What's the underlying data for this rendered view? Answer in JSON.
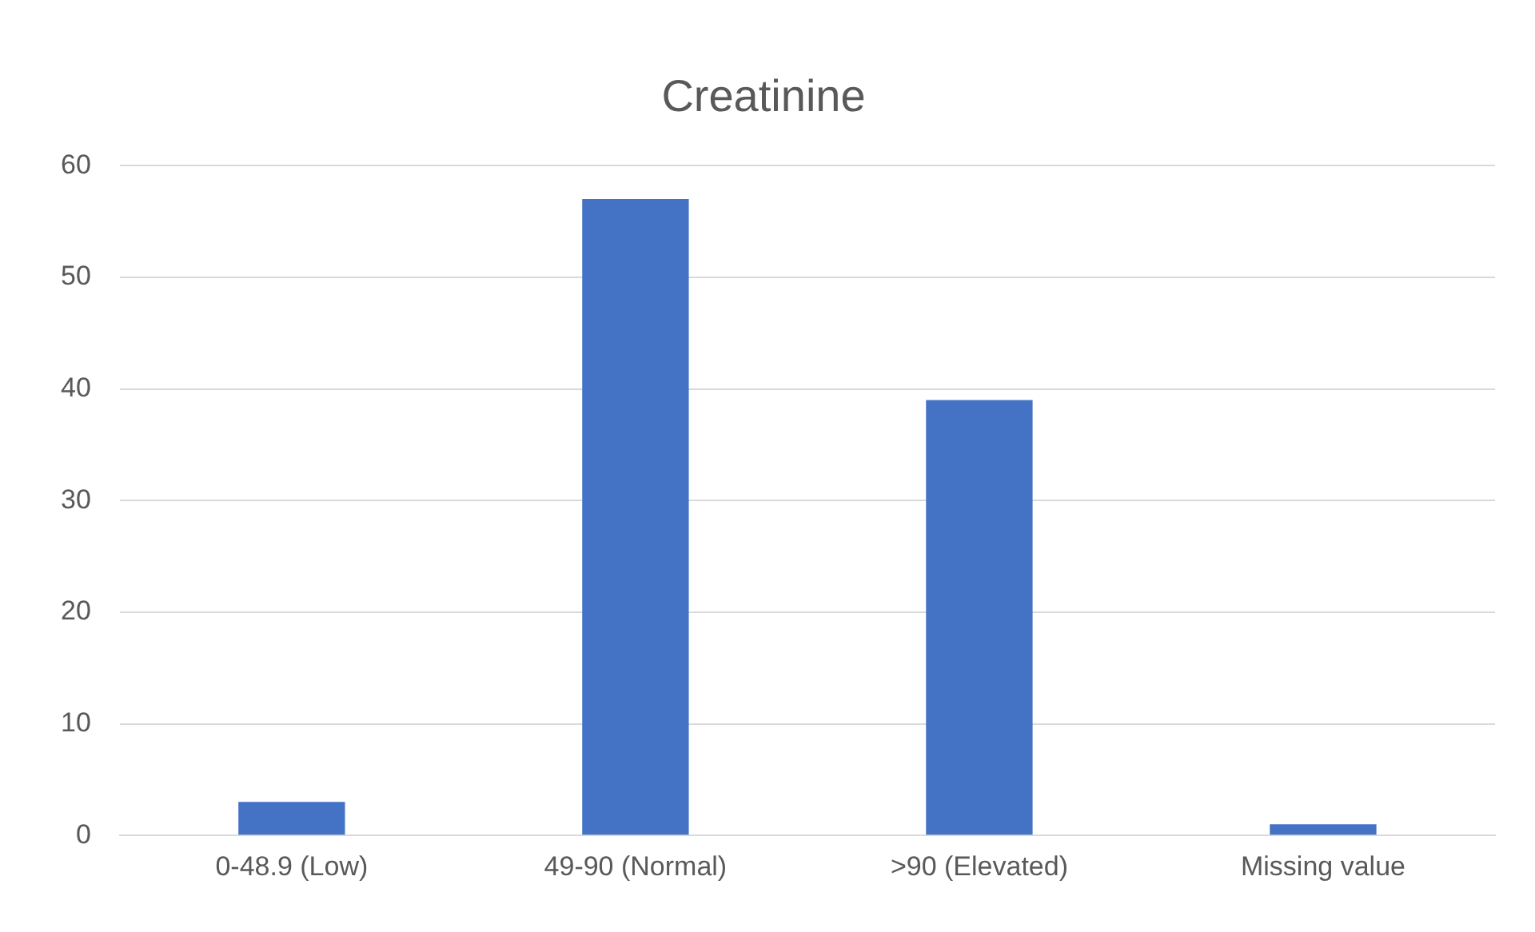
{
  "chart_data": {
    "type": "bar",
    "title": "Creatinine",
    "categories": [
      "0-48.9 (Low)",
      "49-90 (Normal)",
      ">90 (Elevated)",
      "Missing value"
    ],
    "values": [
      3,
      57,
      39,
      1
    ],
    "color": "#4472c4",
    "ylim": [
      0,
      60
    ],
    "yticks": [
      0,
      10,
      20,
      30,
      40,
      50,
      60
    ],
    "grid": "y",
    "legend": false
  }
}
